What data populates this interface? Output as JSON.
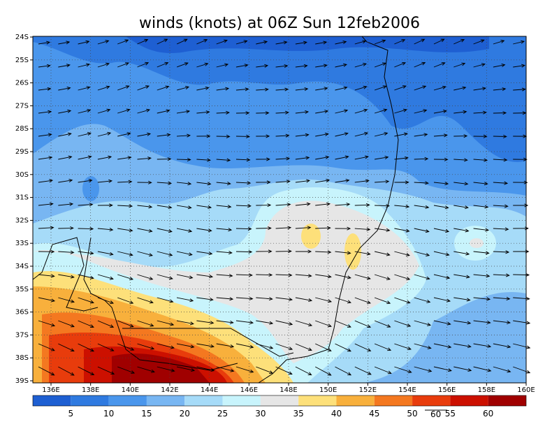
{
  "title": "winds (knots) at 06Z Sun 12feb2006",
  "lat_labels": [
    "24S",
    "25S",
    "26S",
    "27S",
    "28S",
    "29S",
    "30S",
    "31S",
    "32S",
    "33S",
    "34S",
    "35S",
    "36S",
    "37S",
    "38S",
    "39S"
  ],
  "lon_labels": [
    "136E",
    "138E",
    "140E",
    "142E",
    "144E",
    "146E",
    "148E",
    "150E",
    "152E",
    "154E",
    "156E",
    "158E",
    "160E"
  ],
  "colorbar": {
    "labels": [
      "5",
      "10",
      "15",
      "20",
      "25",
      "30",
      "35",
      "40",
      "45",
      "50",
      "55",
      "60"
    ],
    "colors": [
      "#1e5fd2",
      "#2f7ae0",
      "#4a96ec",
      "#78b6f2",
      "#a6dbf8",
      "#c8f4fc",
      "#e6e6e6",
      "#fde07a",
      "#f8b03c",
      "#f47820",
      "#e83c0c",
      "#cc1000",
      "#a00000"
    ]
  },
  "reference_vector_label": "60"
}
